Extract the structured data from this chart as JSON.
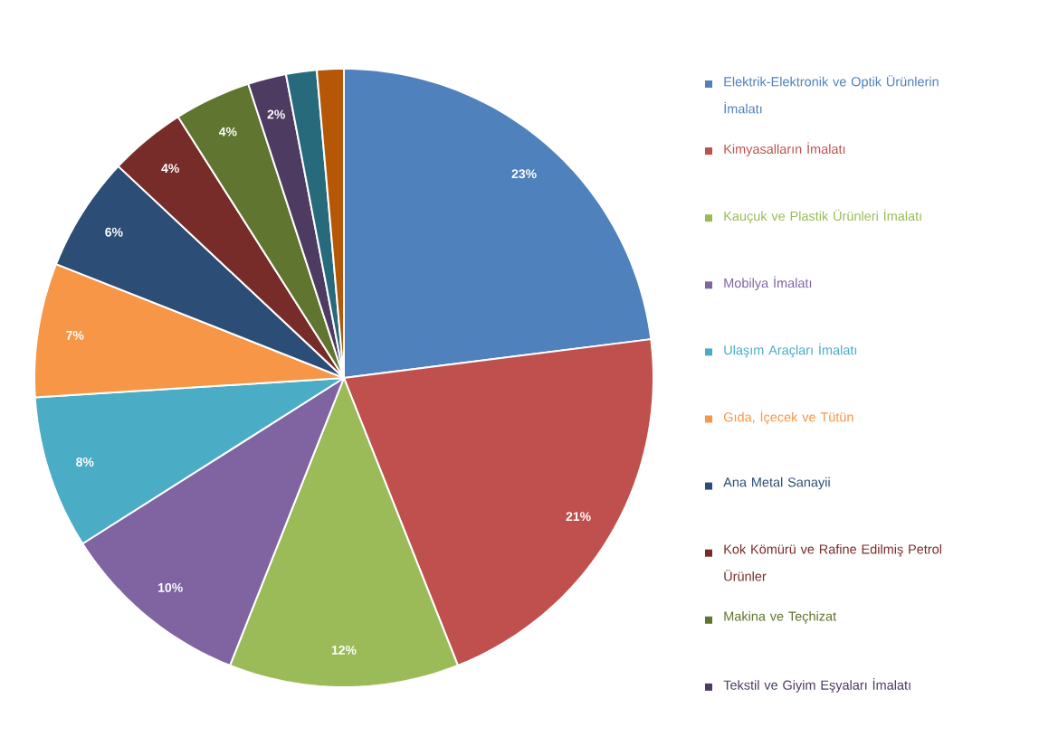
{
  "chart_data": {
    "type": "pie",
    "categories": [
      "Elektrik-Elektronik ve Optik Ürünlerin İmalatı",
      "Kimyasalların  İmalatı",
      "Kauçuk ve Plastik Ürünleri İmalatı",
      "Mobilya İmalatı",
      "Ulaşım Araçları İmalatı",
      "Gıda, İçecek ve Tütün",
      "Ana Metal Sanayii",
      "Kok Kömürü ve Rafine Edilmiş Petrol Ürünler",
      "Makina ve Teçhizat",
      "Tekstil ve Giyim Eşyaları İmalatı",
      null,
      null
    ],
    "values": [
      23,
      21,
      12,
      10,
      8,
      7,
      6,
      4,
      4,
      2,
      1.6,
      1.4
    ],
    "value_labels": [
      "23%",
      "21%",
      "12%",
      "10%",
      "8%",
      "7%",
      "6%",
      "4%",
      "4%",
      "2%",
      null,
      null
    ],
    "colors": [
      "#4f81bd",
      "#c0504d",
      "#9bbb59",
      "#8064a2",
      "#4bacc6",
      "#f79646",
      "#2c4d75",
      "#772c2a",
      "#5f7530",
      "#4d3b62",
      "#276a7c",
      "#b65708"
    ],
    "legend": "right"
  }
}
